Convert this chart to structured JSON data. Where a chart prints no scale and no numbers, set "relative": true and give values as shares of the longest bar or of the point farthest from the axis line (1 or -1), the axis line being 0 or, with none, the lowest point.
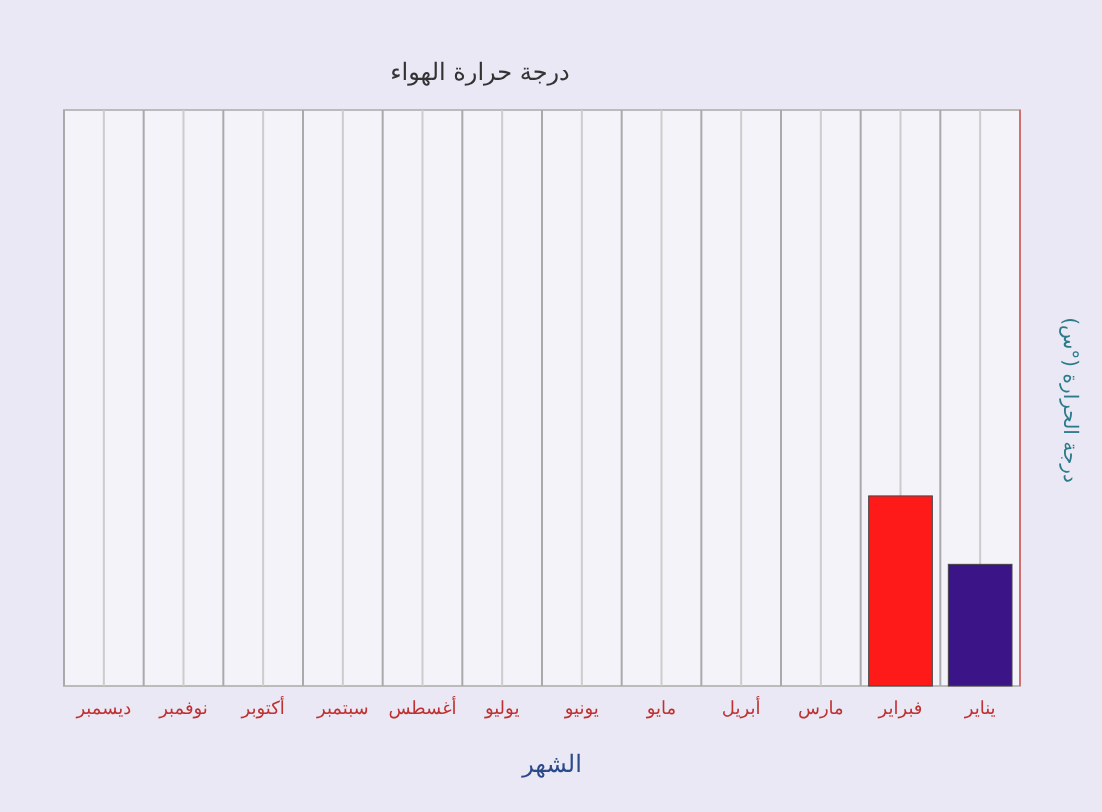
{
  "chart_data": {
    "type": "bar",
    "title": "درجة حرارة الهواء",
    "xlabel": "الشهر",
    "ylabel": "درجة الحرارة (°س)",
    "categories": [
      "ديسمبر",
      "نوفمبر",
      "أكتوبر",
      "سبتمبر",
      "أغسطس",
      "يوليو",
      "يونيو",
      "مايو",
      "أبريل",
      "مارس",
      "فبراير",
      "يناير"
    ],
    "values": [
      null,
      null,
      null,
      null,
      null,
      null,
      null,
      null,
      null,
      null,
      1,
      0.64
    ],
    "colors": [
      null,
      null,
      null,
      null,
      null,
      null,
      null,
      null,
      null,
      null,
      "#ff1a1a",
      "#3b1587"
    ],
    "relative": true,
    "grid": "x"
  }
}
